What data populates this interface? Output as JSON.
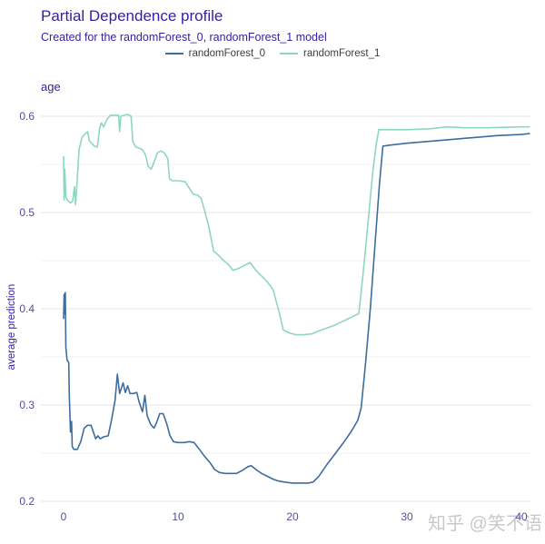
{
  "header": {
    "title": "Partial Dependence profile",
    "subtitle": "Created for the randomForest_0, randomForest_1 model"
  },
  "legend": {
    "items": [
      {
        "label": "randomForest_0",
        "color": "#3d6c9e"
      },
      {
        "label": "randomForest_1",
        "color": "#8dd6bf"
      }
    ]
  },
  "facet_label": "age",
  "y_axis_title": "average prediction",
  "watermark": "知乎 @笑不语",
  "chart_data": {
    "type": "line",
    "title": "Partial Dependence profile",
    "subtitle": "Created for the randomForest_0, randomForest_1 model",
    "facet": "age",
    "xlabel": "age",
    "ylabel": "average prediction",
    "xlim": [
      0,
      40.7
    ],
    "ylim": [
      0.2,
      0.615
    ],
    "x_ticks": [
      0,
      10,
      20,
      30,
      40
    ],
    "y_ticks": [
      0.2,
      0.3,
      0.4,
      0.5,
      0.6
    ],
    "y_minor_ticks": [
      0.25,
      0.35,
      0.45,
      0.55
    ],
    "grid": "horizontal-only",
    "legend_position": "top",
    "series": [
      {
        "name": "randomForest_0",
        "color": "#3d6c9e",
        "points": [
          [
            0,
            0.39
          ],
          [
            0.05,
            0.415
          ],
          [
            0.1,
            0.395
          ],
          [
            0.15,
            0.417
          ],
          [
            0.2,
            0.36
          ],
          [
            0.3,
            0.347
          ],
          [
            0.45,
            0.344
          ],
          [
            0.5,
            0.31
          ],
          [
            0.6,
            0.272
          ],
          [
            0.7,
            0.283
          ],
          [
            0.75,
            0.257
          ],
          [
            0.9,
            0.254
          ],
          [
            1.2,
            0.254
          ],
          [
            1.5,
            0.262
          ],
          [
            1.8,
            0.276
          ],
          [
            2.1,
            0.279
          ],
          [
            2.4,
            0.279
          ],
          [
            2.6,
            0.272
          ],
          [
            2.8,
            0.265
          ],
          [
            3.0,
            0.268
          ],
          [
            3.2,
            0.265
          ],
          [
            3.5,
            0.267
          ],
          [
            3.9,
            0.268
          ],
          [
            4.2,
            0.285
          ],
          [
            4.5,
            0.305
          ],
          [
            4.7,
            0.332
          ],
          [
            4.9,
            0.312
          ],
          [
            5.2,
            0.323
          ],
          [
            5.4,
            0.313
          ],
          [
            5.6,
            0.32
          ],
          [
            5.8,
            0.312
          ],
          [
            6.1,
            0.312
          ],
          [
            6.4,
            0.313
          ],
          [
            6.6,
            0.303
          ],
          [
            6.9,
            0.293
          ],
          [
            7.1,
            0.31
          ],
          [
            7.3,
            0.289
          ],
          [
            7.6,
            0.28
          ],
          [
            7.9,
            0.276
          ],
          [
            8.1,
            0.281
          ],
          [
            8.4,
            0.291
          ],
          [
            8.7,
            0.291
          ],
          [
            9.0,
            0.281
          ],
          [
            9.3,
            0.268
          ],
          [
            9.6,
            0.262
          ],
          [
            10.0,
            0.261
          ],
          [
            10.5,
            0.261
          ],
          [
            11.0,
            0.262
          ],
          [
            11.4,
            0.261
          ],
          [
            11.8,
            0.255
          ],
          [
            12.3,
            0.247
          ],
          [
            12.8,
            0.24
          ],
          [
            13.2,
            0.233
          ],
          [
            13.6,
            0.23
          ],
          [
            14.1,
            0.229
          ],
          [
            14.6,
            0.229
          ],
          [
            15.1,
            0.229
          ],
          [
            15.6,
            0.232
          ],
          [
            16.1,
            0.236
          ],
          [
            16.4,
            0.237
          ],
          [
            16.8,
            0.233
          ],
          [
            17.3,
            0.229
          ],
          [
            17.8,
            0.226
          ],
          [
            18.3,
            0.223
          ],
          [
            18.8,
            0.221
          ],
          [
            19.3,
            0.22
          ],
          [
            20.0,
            0.219
          ],
          [
            20.7,
            0.219
          ],
          [
            21.4,
            0.219
          ],
          [
            21.8,
            0.22
          ],
          [
            22.3,
            0.226
          ],
          [
            23.0,
            0.238
          ],
          [
            23.7,
            0.249
          ],
          [
            24.4,
            0.26
          ],
          [
            25.1,
            0.272
          ],
          [
            25.7,
            0.284
          ],
          [
            26.0,
            0.297
          ],
          [
            26.4,
            0.345
          ],
          [
            26.8,
            0.4
          ],
          [
            27.2,
            0.465
          ],
          [
            27.6,
            0.53
          ],
          [
            27.9,
            0.569
          ],
          [
            28.5,
            0.57
          ],
          [
            30,
            0.572
          ],
          [
            32,
            0.574
          ],
          [
            34,
            0.576
          ],
          [
            36,
            0.578
          ],
          [
            38,
            0.58
          ],
          [
            40,
            0.581
          ],
          [
            40.7,
            0.582
          ]
        ]
      },
      {
        "name": "randomForest_1",
        "color": "#8dd6bf",
        "points": [
          [
            0,
            0.558
          ],
          [
            0.05,
            0.513
          ],
          [
            0.1,
            0.545
          ],
          [
            0.2,
            0.516
          ],
          [
            0.4,
            0.512
          ],
          [
            0.6,
            0.51
          ],
          [
            0.8,
            0.512
          ],
          [
            0.95,
            0.527
          ],
          [
            1.05,
            0.508
          ],
          [
            1.2,
            0.535
          ],
          [
            1.35,
            0.565
          ],
          [
            1.6,
            0.578
          ],
          [
            1.9,
            0.582
          ],
          [
            2.1,
            0.584
          ],
          [
            2.25,
            0.575
          ],
          [
            2.45,
            0.572
          ],
          [
            2.7,
            0.569
          ],
          [
            2.95,
            0.568
          ],
          [
            3.15,
            0.588
          ],
          [
            3.3,
            0.593
          ],
          [
            3.5,
            0.589
          ],
          [
            3.8,
            0.597
          ],
          [
            4.1,
            0.601
          ],
          [
            4.5,
            0.601
          ],
          [
            4.8,
            0.601
          ],
          [
            4.9,
            0.584
          ],
          [
            5.0,
            0.6
          ],
          [
            5.3,
            0.601
          ],
          [
            5.6,
            0.602
          ],
          [
            5.9,
            0.6
          ],
          [
            6.05,
            0.574
          ],
          [
            6.3,
            0.568
          ],
          [
            6.6,
            0.567
          ],
          [
            6.9,
            0.565
          ],
          [
            7.15,
            0.56
          ],
          [
            7.4,
            0.548
          ],
          [
            7.65,
            0.545
          ],
          [
            7.9,
            0.552
          ],
          [
            8.2,
            0.562
          ],
          [
            8.5,
            0.564
          ],
          [
            8.8,
            0.562
          ],
          [
            9.1,
            0.556
          ],
          [
            9.25,
            0.535
          ],
          [
            9.5,
            0.533
          ],
          [
            10.0,
            0.533
          ],
          [
            10.6,
            0.532
          ],
          [
            11.0,
            0.525
          ],
          [
            11.35,
            0.519
          ],
          [
            11.7,
            0.518
          ],
          [
            12.0,
            0.515
          ],
          [
            12.3,
            0.503
          ],
          [
            12.7,
            0.485
          ],
          [
            13.1,
            0.46
          ],
          [
            13.5,
            0.456
          ],
          [
            13.9,
            0.451
          ],
          [
            14.4,
            0.446
          ],
          [
            14.8,
            0.44
          ],
          [
            15.3,
            0.442
          ],
          [
            15.8,
            0.445
          ],
          [
            16.3,
            0.448
          ],
          [
            16.8,
            0.44
          ],
          [
            17.3,
            0.434
          ],
          [
            17.8,
            0.428
          ],
          [
            18.3,
            0.42
          ],
          [
            18.8,
            0.398
          ],
          [
            19.2,
            0.378
          ],
          [
            19.7,
            0.375
          ],
          [
            20.3,
            0.373
          ],
          [
            21.0,
            0.373
          ],
          [
            21.7,
            0.374
          ],
          [
            22.3,
            0.377
          ],
          [
            23.0,
            0.38
          ],
          [
            23.7,
            0.383
          ],
          [
            24.4,
            0.387
          ],
          [
            25.1,
            0.391
          ],
          [
            25.8,
            0.395
          ],
          [
            26.2,
            0.44
          ],
          [
            26.6,
            0.49
          ],
          [
            27.0,
            0.54
          ],
          [
            27.3,
            0.57
          ],
          [
            27.55,
            0.586
          ],
          [
            28.5,
            0.586
          ],
          [
            30,
            0.586
          ],
          [
            32,
            0.587
          ],
          [
            33.5,
            0.589
          ],
          [
            35,
            0.588
          ],
          [
            37,
            0.588
          ],
          [
            40,
            0.589
          ],
          [
            40.7,
            0.589
          ]
        ]
      }
    ]
  }
}
